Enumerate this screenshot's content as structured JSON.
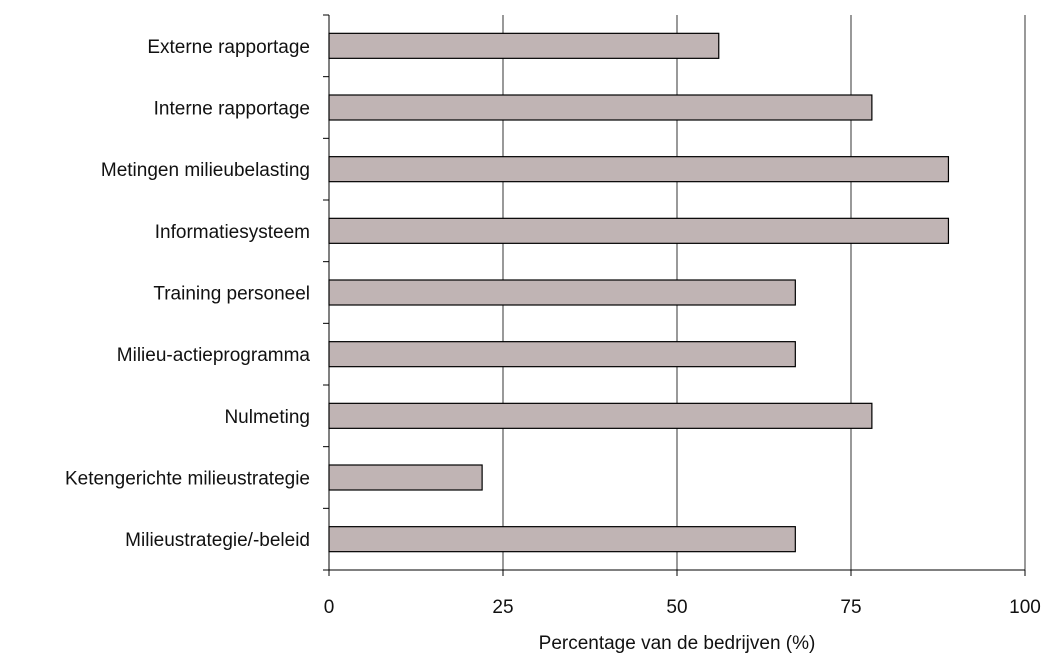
{
  "chart_data": {
    "type": "bar",
    "orientation": "horizontal",
    "categories": [
      "Externe rapportage",
      "Interne rapportage",
      "Metingen milieubelasting",
      "Informatiesysteem",
      "Training personeel",
      "Milieu-actieprogramma",
      "Nulmeting",
      "Ketengerichte milieustrategie",
      "Milieustrategie/-beleid"
    ],
    "values": [
      56,
      78,
      89,
      89,
      67,
      67,
      78,
      22,
      67
    ],
    "title": "",
    "xlabel": "Percentage van de bedrijven (%)",
    "ylabel": "",
    "xlim": [
      0,
      100
    ],
    "xticks": [
      0,
      25,
      50,
      75,
      100
    ],
    "grid": "vertical",
    "bar_color": "#c0b4b4"
  }
}
